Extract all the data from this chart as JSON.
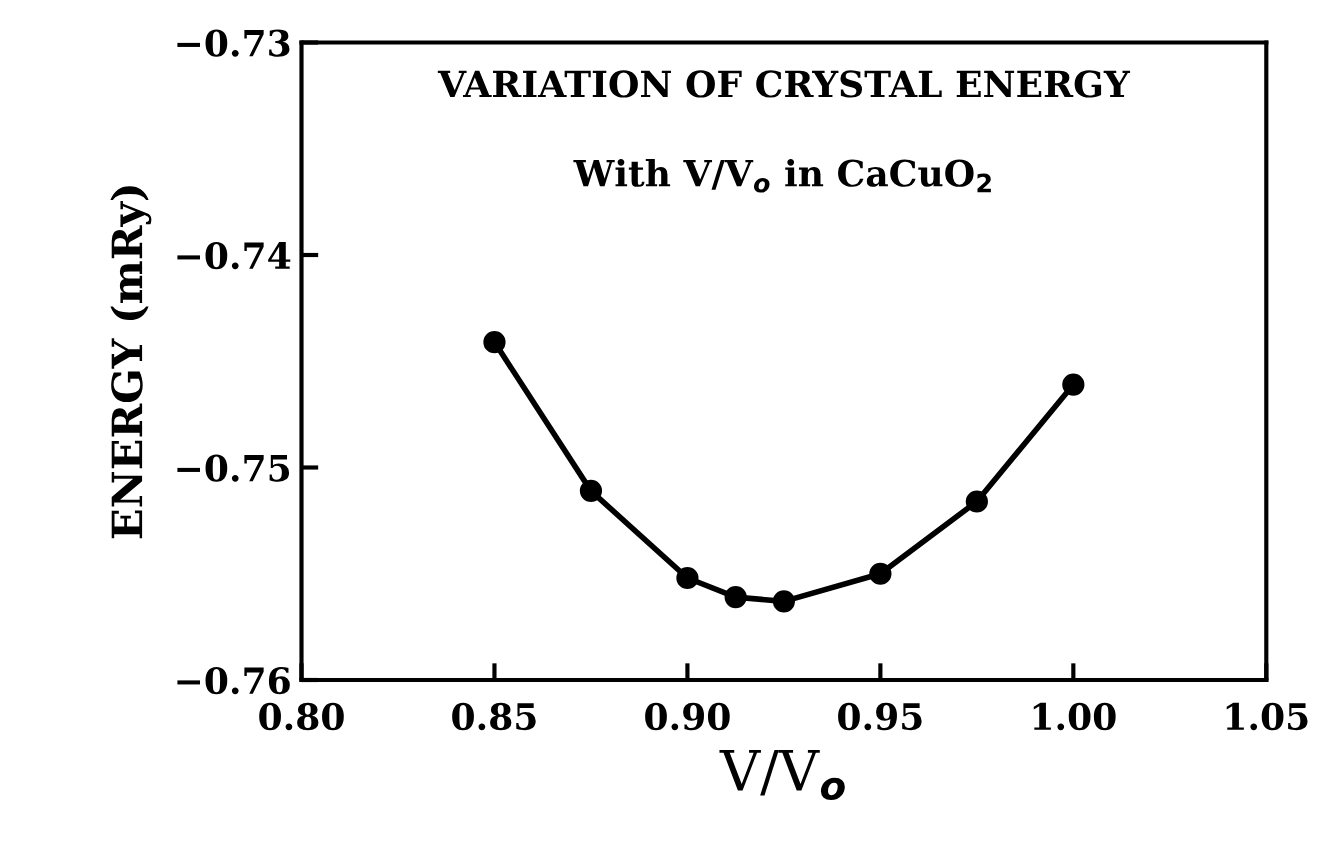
{
  "chart_data": {
    "type": "line",
    "xlabel": "V/V$_{o}$",
    "ylabel": "ENERGY (mRy)",
    "annotations": [
      "VARIATION OF CRYSTAL ENERGY",
      "With V/V$_{o}$ in CaCuO$_{2}$"
    ],
    "x": [
      0.85,
      0.875,
      0.9,
      0.9125,
      0.925,
      0.95,
      0.975,
      1.0
    ],
    "series": [
      {
        "color": "#000000",
        "values": [
          -0.7441,
          -0.7511,
          -0.7552,
          -0.7561,
          -0.7563,
          -0.755,
          -0.7516,
          -0.7461
        ]
      }
    ],
    "xlim": [
      0.8,
      1.05
    ],
    "xticks": [
      {
        "value": 0.8,
        "label": "0.80"
      },
      {
        "value": 0.85,
        "label": "0.85"
      },
      {
        "value": 0.9,
        "label": "0.90"
      },
      {
        "value": 0.95,
        "label": "0.95"
      },
      {
        "value": 1.0,
        "label": "1.00"
      },
      {
        "value": 1.05,
        "label": "1.05"
      }
    ],
    "ylim": [
      -0.76,
      -0.73
    ],
    "yticks": [
      {
        "value": -0.76,
        "label": "−0.76"
      },
      {
        "value": -0.75,
        "label": "−0.75"
      },
      {
        "value": -0.74,
        "label": "−0.74"
      },
      {
        "value": -0.73,
        "label": "−0.73"
      }
    ],
    "marker": "circle",
    "line_style": "solid",
    "grid": false,
    "legend": false
  }
}
